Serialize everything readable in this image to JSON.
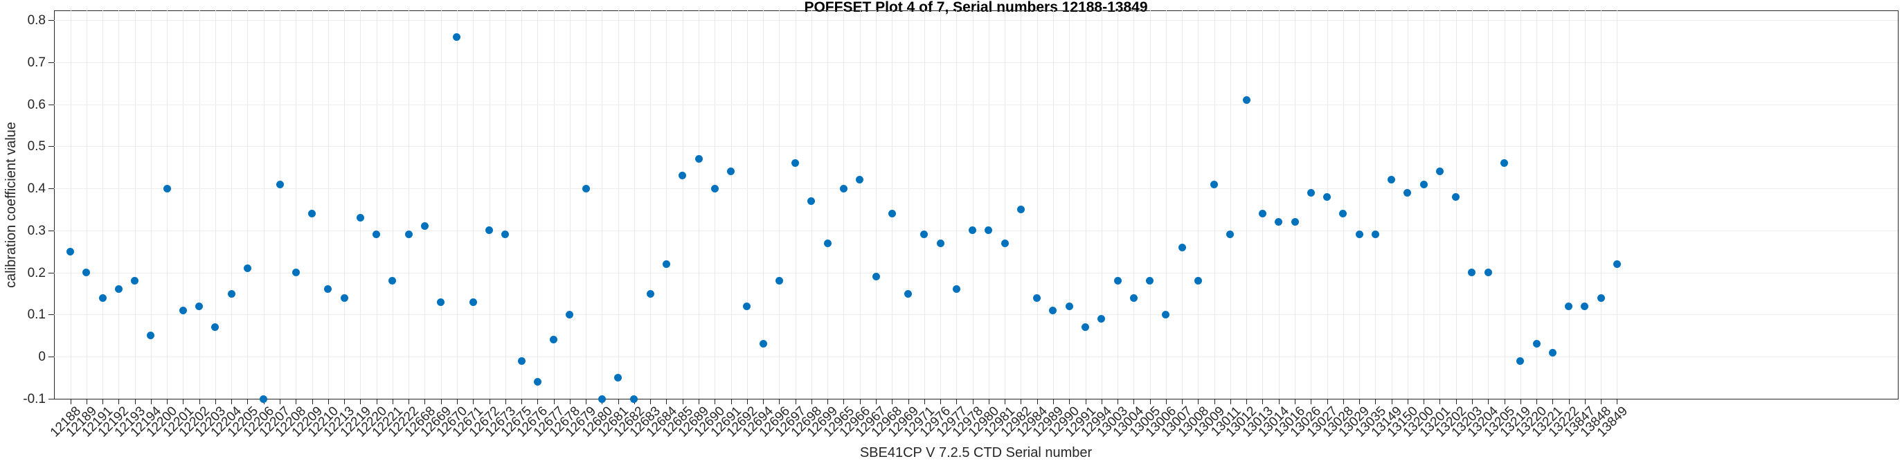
{
  "chart_data": {
    "type": "scatter",
    "title": "POFFSET Plot 4 of 7, Serial numbers 12188-13849",
    "xlabel": "SBE41CP V 7.2.5 CTD Serial number",
    "ylabel": "calibration coefficient value",
    "ylim": [
      -0.1,
      0.82
    ],
    "yticks": [
      -0.1,
      0,
      0.1,
      0.2,
      0.3,
      0.4,
      0.5,
      0.6,
      0.7,
      0.8
    ],
    "grid": true,
    "legend": "none",
    "marker_color": "#0072BD",
    "axis_color": "#262626",
    "grid_color": "#e9e9e9",
    "categories": [
      "12188",
      "12189",
      "12191",
      "12192",
      "12193",
      "12194",
      "12200",
      "12201",
      "12202",
      "12203",
      "12204",
      "12205",
      "12206",
      "12207",
      "12208",
      "12209",
      "12210",
      "12213",
      "12219",
      "12220",
      "12221",
      "12222",
      "12668",
      "12669",
      "12670",
      "12671",
      "12672",
      "12673",
      "12675",
      "12676",
      "12677",
      "12678",
      "12679",
      "12680",
      "12681",
      "12682",
      "12683",
      "12684",
      "12685",
      "12689",
      "12690",
      "12691",
      "12692",
      "12694",
      "12696",
      "12697",
      "12698",
      "12699",
      "12965",
      "12966",
      "12967",
      "12968",
      "12969",
      "12971",
      "12976",
      "12977",
      "12978",
      "12980",
      "12981",
      "12982",
      "12984",
      "12989",
      "12990",
      "12991",
      "12994",
      "13003",
      "13004",
      "13005",
      "13006",
      "13007",
      "13008",
      "13009",
      "13011",
      "13012",
      "13013",
      "13014",
      "13016",
      "13026",
      "13027",
      "13028",
      "13029",
      "13035",
      "13149",
      "13150",
      "13200",
      "13201",
      "13202",
      "13203",
      "13204",
      "13205",
      "13219",
      "13220",
      "13221",
      "13222",
      "13847",
      "13848",
      "13849"
    ],
    "values": [
      0.25,
      0.2,
      0.14,
      0.16,
      0.18,
      0.05,
      0.4,
      0.11,
      0.12,
      0.07,
      0.15,
      0.21,
      -0.1,
      0.41,
      0.2,
      0.34,
      0.16,
      0.14,
      0.33,
      0.29,
      0.18,
      0.29,
      0.31,
      0.13,
      0.76,
      0.13,
      0.3,
      0.29,
      -0.01,
      -0.06,
      0.04,
      0.1,
      0.4,
      -0.1,
      -0.05,
      -0.1,
      0.15,
      0.22,
      0.43,
      0.47,
      0.4,
      0.44,
      0.12,
      0.03,
      0.18,
      0.46,
      0.37,
      0.27,
      0.4,
      0.42,
      0.19,
      0.34,
      0.15,
      0.29,
      0.27,
      0.16,
      0.3,
      0.3,
      0.27,
      0.35,
      0.14,
      0.11,
      0.12,
      0.07,
      0.09,
      0.18,
      0.14,
      0.18,
      0.1,
      0.26,
      0.18,
      0.41,
      0.29,
      0.61,
      0.34,
      0.32,
      0.32,
      0.39,
      0.38,
      0.34,
      0.29,
      0.29,
      0.42,
      0.39,
      0.41,
      0.44,
      0.38,
      0.2,
      0.2,
      0.46,
      -0.01,
      0.03,
      0.01,
      0.12,
      0.12,
      0.14,
      0.22
    ]
  }
}
